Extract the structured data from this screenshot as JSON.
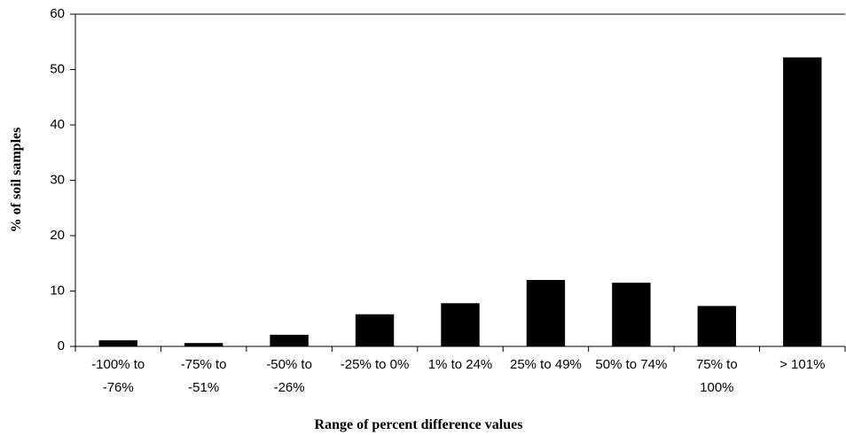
{
  "chart_data": {
    "type": "bar",
    "x_label": "Range of percent difference values",
    "y_label": "% of soil samples",
    "categories": [
      "-100% to -76%",
      "-75% to -51%",
      "-50% to -26%",
      "-25% to 0%",
      "1% to 24%",
      "25% to 49%",
      "50% to 74%",
      "75% to 100%",
      "> 101%"
    ],
    "values": [
      1.1,
      0.6,
      2.1,
      5.8,
      7.8,
      12.0,
      11.5,
      7.3,
      52.2
    ],
    "color": "#000000",
    "ylim": [
      0,
      60
    ],
    "yticks": [
      0,
      10,
      20,
      30,
      40,
      50,
      60
    ],
    "grid": false
  }
}
